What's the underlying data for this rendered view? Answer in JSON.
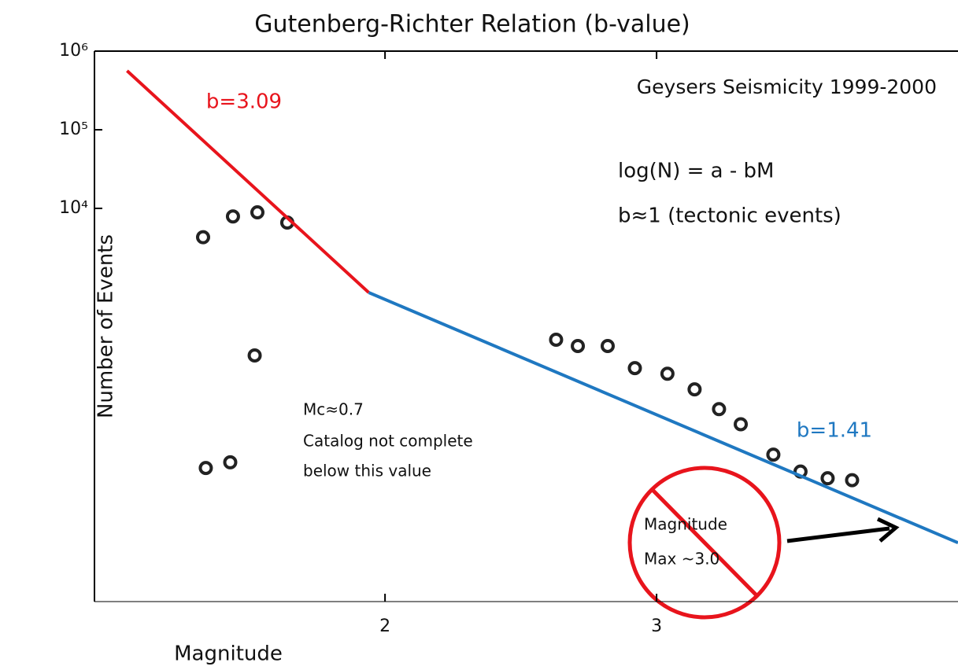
{
  "chart_data": {
    "type": "scatter",
    "title": "Gutenberg-Richter Relation (b-value)",
    "subtitle": "Geysers Seismicity 1999-2000",
    "x_label": "Magnitude",
    "y_label": "Number of Events",
    "annotations": [
      "log(N) = a - bM",
      "b≈1 (tectonic events)",
      "Mc≈0.7",
      "Catalog not complete",
      "below this value",
      "Magnitude",
      "Max ~3.0"
    ],
    "y_log": true,
    "xlim": [
      0.93,
      4.11
    ],
    "ylim": [
      0.1,
      1000000
    ],
    "xticks": [
      2,
      3
    ],
    "yticks": [
      {
        "value": 1000000,
        "label": "10⁶"
      },
      {
        "value": 100000,
        "label": "10⁵"
      },
      {
        "value": 10000,
        "label": "10⁴"
      }
    ],
    "x": [
      1.33,
      1.44,
      1.53,
      1.64,
      1.52,
      1.34,
      1.43,
      2.63,
      2.71,
      2.82,
      2.92,
      3.04,
      3.14,
      3.23,
      3.31,
      3.43,
      3.53,
      3.63,
      3.72
    ],
    "values": [
      4300,
      7900,
      8900,
      6600,
      135,
      5,
      5.9,
      214,
      178,
      178,
      93,
      79,
      50,
      28,
      18,
      7.4,
      4.5,
      3.7,
      3.5
    ],
    "color": "#222222",
    "fits": [
      {
        "label": "b=3.09",
        "color": "#e8141c",
        "x": [
          1.05,
          1.94
        ],
        "y": [
          562000,
          851
        ]
      },
      {
        "label": "b=1.41",
        "color": "#1f78c1",
        "x": [
          1.94,
          4.11
        ],
        "y": [
          851,
          0.56
        ]
      }
    ]
  }
}
